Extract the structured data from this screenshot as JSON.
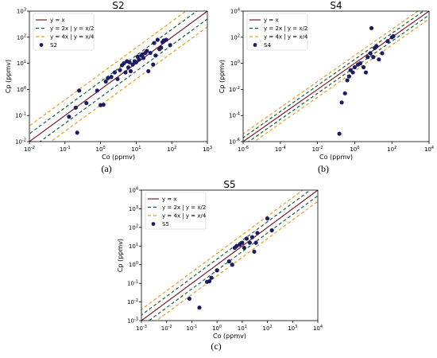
{
  "chart_data": [
    {
      "type": "scatter",
      "title": "S2",
      "caption": "(a)",
      "xlabel": "Co (ppmv)",
      "ylabel": "Cp (ppmv)",
      "xscale": "log",
      "yscale": "log",
      "xlim": [
        0.01,
        1000
      ],
      "ylim": [
        0.01,
        1000
      ],
      "x_ticks": [
        {
          "v": 0.01,
          "b": "10",
          "e": "-2"
        },
        {
          "v": 0.1,
          "b": "10",
          "e": "-1"
        },
        {
          "v": 1,
          "b": "10",
          "e": "0"
        },
        {
          "v": 10,
          "b": "10",
          "e": "1"
        },
        {
          "v": 100,
          "b": "10",
          "e": "2"
        },
        {
          "v": 1000,
          "b": "10",
          "e": "3"
        }
      ],
      "y_ticks": [
        {
          "v": 0.01,
          "b": "10",
          "e": "-2"
        },
        {
          "v": 0.1,
          "b": "10",
          "e": "-1"
        },
        {
          "v": 1,
          "b": "10",
          "e": "0"
        },
        {
          "v": 10,
          "b": "10",
          "e": "1"
        },
        {
          "v": 100,
          "b": "10",
          "e": "2"
        },
        {
          "v": 1000,
          "b": "10",
          "e": "3"
        }
      ],
      "legend_position": "top-left",
      "legend": [
        "y = x",
        "y = 2x | y = x/2",
        "y = 4x | y = x/4",
        "S2"
      ],
      "series": [
        {
          "name": "S2",
          "x": [
            0.13,
            0.2,
            0.22,
            0.25,
            0.4,
            0.8,
            1,
            1.2,
            1.4,
            1.6,
            2,
            2.5,
            3,
            3.5,
            4,
            4.5,
            5,
            5.5,
            6,
            6.5,
            7,
            8,
            9,
            10,
            11,
            12,
            14,
            15,
            16,
            18,
            20,
            22,
            25,
            30,
            32,
            35,
            40,
            45,
            50,
            55,
            60,
            70,
            90
          ],
          "y": [
            0.09,
            0.2,
            0.022,
            0.9,
            0.3,
            0.9,
            0.25,
            0.26,
            2,
            2.7,
            3,
            4.5,
            2.5,
            5.5,
            8.5,
            10,
            4.5,
            12,
            7,
            11,
            5,
            9,
            12,
            11,
            18,
            14,
            20,
            22,
            16,
            25,
            30,
            5,
            25,
            9,
            60,
            20,
            80,
            35,
            40,
            65,
            75,
            80,
            50
          ]
        }
      ]
    },
    {
      "type": "scatter",
      "title": "S4",
      "caption": "(b)",
      "xlabel": "Co (ppmv)",
      "ylabel": "Cp (ppmv)",
      "xscale": "log",
      "yscale": "log",
      "xlim": [
        1e-06,
        10000
      ],
      "ylim": [
        1e-06,
        10000
      ],
      "x_ticks": [
        {
          "v": 1e-06,
          "b": "10",
          "e": "-6"
        },
        {
          "v": 0.0001,
          "b": "10",
          "e": "-4"
        },
        {
          "v": 0.01,
          "b": "10",
          "e": "-2"
        },
        {
          "v": 1,
          "b": "10",
          "e": "0"
        },
        {
          "v": 100,
          "b": "10",
          "e": "2"
        },
        {
          "v": 10000,
          "b": "10",
          "e": "4"
        }
      ],
      "y_ticks": [
        {
          "v": 1e-06,
          "b": "10",
          "e": "-6"
        },
        {
          "v": 0.0001,
          "b": "10",
          "e": "-4"
        },
        {
          "v": 0.01,
          "b": "10",
          "e": "-2"
        },
        {
          "v": 1,
          "b": "10",
          "e": "0"
        },
        {
          "v": 100,
          "b": "10",
          "e": "2"
        },
        {
          "v": 10000,
          "b": "10",
          "e": "4"
        }
      ],
      "legend_position": "top-left",
      "legend": [
        "y = x",
        "y = 2x | y = x/2",
        "y = 4x | y = x/4",
        "S4"
      ],
      "series": [
        {
          "name": "S4",
          "x": [
            0.15,
            0.2,
            0.3,
            0.4,
            0.5,
            0.6,
            0.8,
            1,
            1.5,
            2,
            3,
            4,
            5,
            7,
            8,
            10,
            12,
            15,
            20,
            30,
            60,
            100,
            120
          ],
          "y": [
            4e-06,
            0.001,
            0.005,
            0.05,
            0.1,
            0.3,
            0.2,
            0.5,
            0.8,
            1,
            0.5,
            0.2,
            3,
            6,
            500,
            3,
            15,
            20,
            2,
            6,
            50,
            100,
            120
          ]
        }
      ]
    },
    {
      "type": "scatter",
      "title": "S5",
      "caption": "(c)",
      "xlabel": "Co (ppmv)",
      "ylabel": "Cp (ppmv)",
      "xscale": "log",
      "yscale": "log",
      "xlim": [
        0.001,
        10000
      ],
      "ylim": [
        0.001,
        10000
      ],
      "x_ticks": [
        {
          "v": 0.001,
          "b": "10",
          "e": "-3"
        },
        {
          "v": 0.01,
          "b": "10",
          "e": "-2"
        },
        {
          "v": 0.1,
          "b": "10",
          "e": "-1"
        },
        {
          "v": 1,
          "b": "10",
          "e": "0"
        },
        {
          "v": 10,
          "b": "10",
          "e": "1"
        },
        {
          "v": 100,
          "b": "10",
          "e": "2"
        },
        {
          "v": 1000,
          "b": "10",
          "e": "3"
        },
        {
          "v": 10000,
          "b": "10",
          "e": "4"
        }
      ],
      "y_ticks": [
        {
          "v": 0.001,
          "b": "10",
          "e": "-3"
        },
        {
          "v": 0.01,
          "b": "10",
          "e": "-2"
        },
        {
          "v": 0.1,
          "b": "10",
          "e": "-1"
        },
        {
          "v": 1,
          "b": "10",
          "e": "0"
        },
        {
          "v": 10,
          "b": "10",
          "e": "1"
        },
        {
          "v": 100,
          "b": "10",
          "e": "2"
        },
        {
          "v": 1000,
          "b": "10",
          "e": "3"
        },
        {
          "v": 10000,
          "b": "10",
          "e": "4"
        }
      ],
      "legend_position": "top-left",
      "legend": [
        "y = x",
        "y = 2x | y = x/2",
        "y = 4x | y = x/4",
        "S5"
      ],
      "series": [
        {
          "name": "S5",
          "x": [
            0.08,
            0.2,
            0.4,
            0.5,
            0.6,
            1,
            3,
            4,
            5,
            6,
            8,
            10,
            12,
            15,
            20,
            25,
            30,
            35,
            40,
            100,
            150
          ],
          "y": [
            0.015,
            0.005,
            0.12,
            0.13,
            0.2,
            0.5,
            1.5,
            1,
            8,
            10,
            12,
            15,
            8,
            25,
            15,
            30,
            5,
            15,
            50,
            300,
            70
          ]
        }
      ]
    }
  ],
  "colors": {
    "identity": "#7a1f2a",
    "factor2": "#1d5e3a",
    "factor4": "#e0a020",
    "points": "#1c1c64"
  }
}
